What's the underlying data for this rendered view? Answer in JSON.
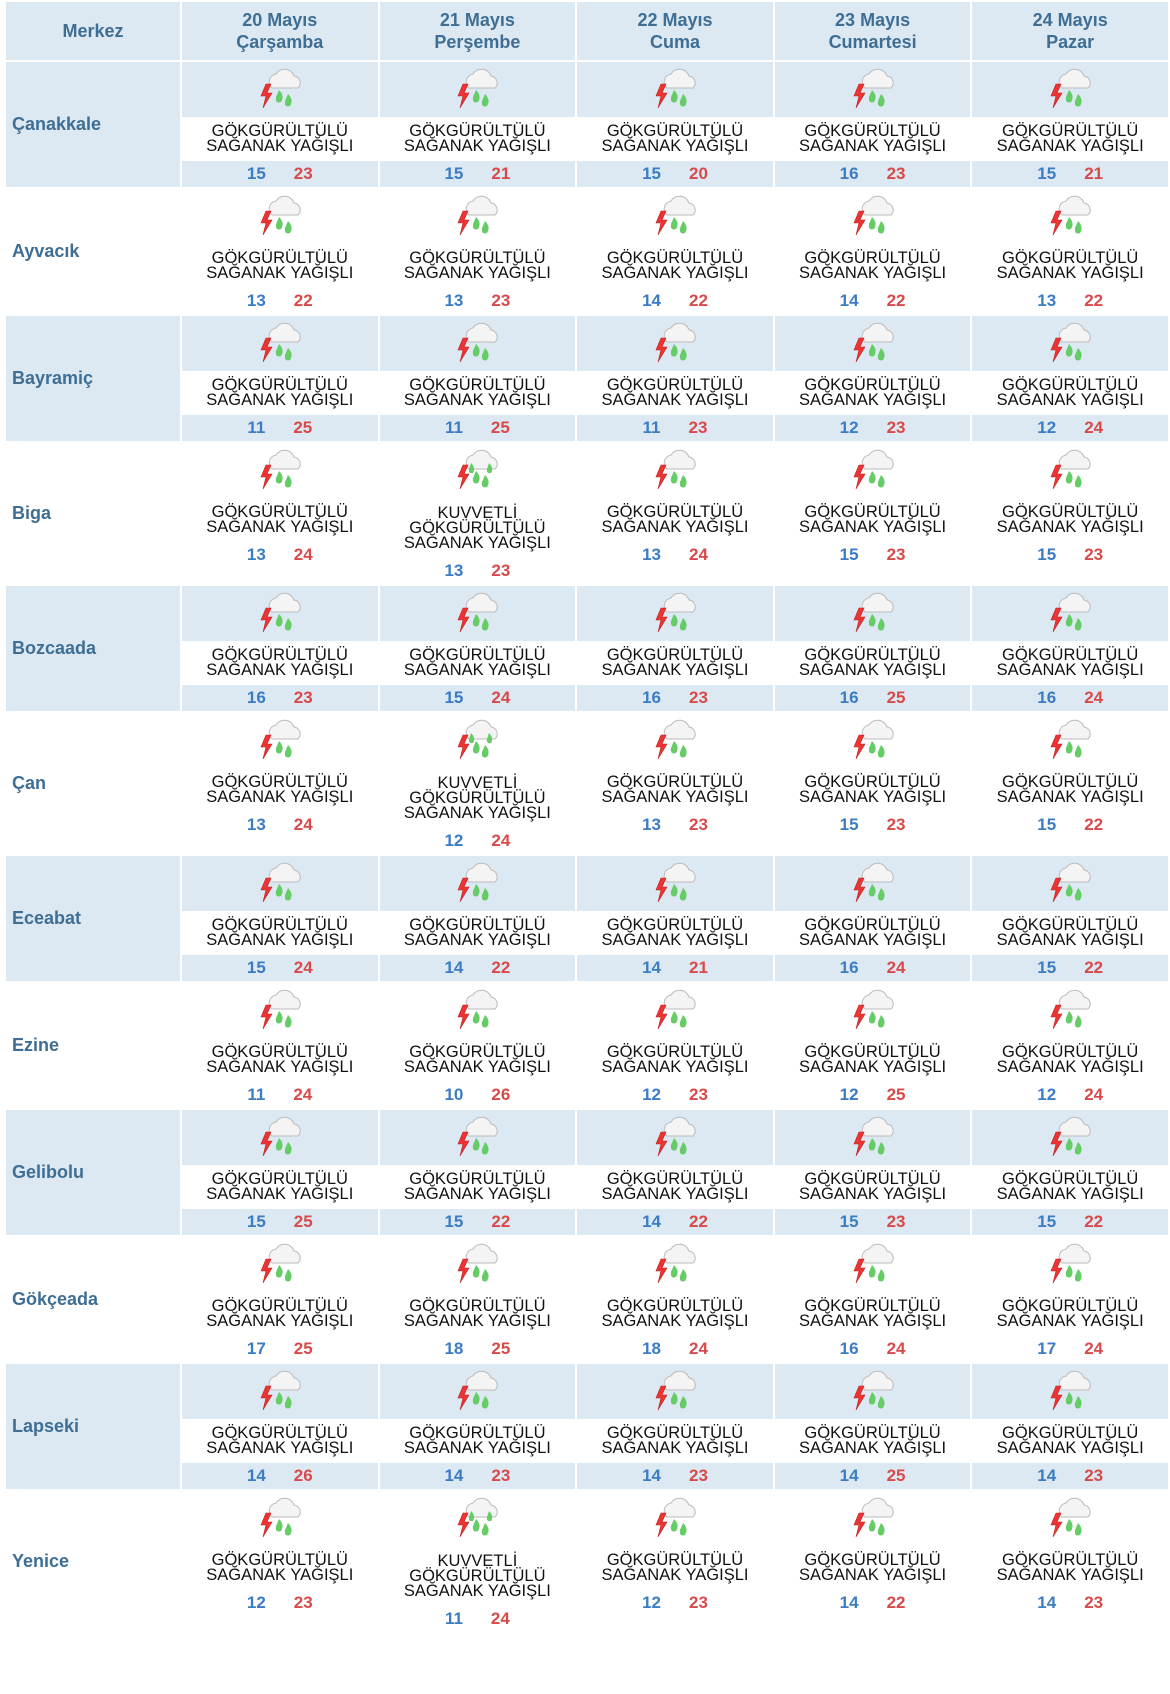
{
  "header": {
    "corner": "Merkez",
    "days": [
      {
        "date": "20 Mayıs",
        "weekday": "Çarşamba"
      },
      {
        "date": "21 Mayıs",
        "weekday": "Perşembe"
      },
      {
        "date": "22 Mayıs",
        "weekday": "Cuma"
      },
      {
        "date": "23 Mayıs",
        "weekday": "Cumartesi"
      },
      {
        "date": "24 Mayıs",
        "weekday": "Pazar"
      }
    ]
  },
  "rows": [
    {
      "city": "Çanakkale",
      "days": [
        {
          "condition": [
            "GÖKGÜRÜLTÜLÜ",
            "SAĞANAK YAĞIŞLI"
          ],
          "low": 15,
          "high": 23
        },
        {
          "condition": [
            "GÖKGÜRÜLTÜLÜ",
            "SAĞANAK YAĞIŞLI"
          ],
          "low": 15,
          "high": 21
        },
        {
          "condition": [
            "GÖKGÜRÜLTÜLÜ",
            "SAĞANAK YAĞIŞLI"
          ],
          "low": 15,
          "high": 20
        },
        {
          "condition": [
            "GÖKGÜRÜLTÜLÜ",
            "SAĞANAK YAĞIŞLI"
          ],
          "low": 16,
          "high": 23
        },
        {
          "condition": [
            "GÖKGÜRÜLTÜLÜ",
            "SAĞANAK YAĞIŞLI"
          ],
          "low": 15,
          "high": 21
        }
      ]
    },
    {
      "city": "Ayvacık",
      "days": [
        {
          "condition": [
            "GÖKGÜRÜLTÜLÜ",
            "SAĞANAK YAĞIŞLI"
          ],
          "low": 13,
          "high": 22
        },
        {
          "condition": [
            "GÖKGÜRÜLTÜLÜ",
            "SAĞANAK YAĞIŞLI"
          ],
          "low": 13,
          "high": 23
        },
        {
          "condition": [
            "GÖKGÜRÜLTÜLÜ",
            "SAĞANAK YAĞIŞLI"
          ],
          "low": 14,
          "high": 22
        },
        {
          "condition": [
            "GÖKGÜRÜLTÜLÜ",
            "SAĞANAK YAĞIŞLI"
          ],
          "low": 14,
          "high": 22
        },
        {
          "condition": [
            "GÖKGÜRÜLTÜLÜ",
            "SAĞANAK YAĞIŞLI"
          ],
          "low": 13,
          "high": 22
        }
      ]
    },
    {
      "city": "Bayramiç",
      "days": [
        {
          "condition": [
            "GÖKGÜRÜLTÜLÜ",
            "SAĞANAK YAĞIŞLI"
          ],
          "low": 11,
          "high": 25
        },
        {
          "condition": [
            "GÖKGÜRÜLTÜLÜ",
            "SAĞANAK YAĞIŞLI"
          ],
          "low": 11,
          "high": 25
        },
        {
          "condition": [
            "GÖKGÜRÜLTÜLÜ",
            "SAĞANAK YAĞIŞLI"
          ],
          "low": 11,
          "high": 23
        },
        {
          "condition": [
            "GÖKGÜRÜLTÜLÜ",
            "SAĞANAK YAĞIŞLI"
          ],
          "low": 12,
          "high": 23
        },
        {
          "condition": [
            "GÖKGÜRÜLTÜLÜ",
            "SAĞANAK YAĞIŞLI"
          ],
          "low": 12,
          "high": 24
        }
      ]
    },
    {
      "city": "Biga",
      "days": [
        {
          "condition": [
            "GÖKGÜRÜLTÜLÜ",
            "SAĞANAK YAĞIŞLI"
          ],
          "low": 13,
          "high": 24
        },
        {
          "condition": [
            "KUVVETLİ",
            "GÖKGÜRÜLTÜLÜ",
            "SAĞANAK YAĞIŞLI"
          ],
          "low": 13,
          "high": 23
        },
        {
          "condition": [
            "GÖKGÜRÜLTÜLÜ",
            "SAĞANAK YAĞIŞLI"
          ],
          "low": 13,
          "high": 24
        },
        {
          "condition": [
            "GÖKGÜRÜLTÜLÜ",
            "SAĞANAK YAĞIŞLI"
          ],
          "low": 15,
          "high": 23
        },
        {
          "condition": [
            "GÖKGÜRÜLTÜLÜ",
            "SAĞANAK YAĞIŞLI"
          ],
          "low": 15,
          "high": 23
        }
      ]
    },
    {
      "city": "Bozcaada",
      "days": [
        {
          "condition": [
            "GÖKGÜRÜLTÜLÜ",
            "SAĞANAK YAĞIŞLI"
          ],
          "low": 16,
          "high": 23
        },
        {
          "condition": [
            "GÖKGÜRÜLTÜLÜ",
            "SAĞANAK YAĞIŞLI"
          ],
          "low": 15,
          "high": 24
        },
        {
          "condition": [
            "GÖKGÜRÜLTÜLÜ",
            "SAĞANAK YAĞIŞLI"
          ],
          "low": 16,
          "high": 23
        },
        {
          "condition": [
            "GÖKGÜRÜLTÜLÜ",
            "SAĞANAK YAĞIŞLI"
          ],
          "low": 16,
          "high": 25
        },
        {
          "condition": [
            "GÖKGÜRÜLTÜLÜ",
            "SAĞANAK YAĞIŞLI"
          ],
          "low": 16,
          "high": 24
        }
      ]
    },
    {
      "city": "Çan",
      "days": [
        {
          "condition": [
            "GÖKGÜRÜLTÜLÜ",
            "SAĞANAK YAĞIŞLI"
          ],
          "low": 13,
          "high": 24
        },
        {
          "condition": [
            "KUVVETLİ",
            "GÖKGÜRÜLTÜLÜ",
            "SAĞANAK YAĞIŞLI"
          ],
          "low": 12,
          "high": 24
        },
        {
          "condition": [
            "GÖKGÜRÜLTÜLÜ",
            "SAĞANAK YAĞIŞLI"
          ],
          "low": 13,
          "high": 23
        },
        {
          "condition": [
            "GÖKGÜRÜLTÜLÜ",
            "SAĞANAK YAĞIŞLI"
          ],
          "low": 15,
          "high": 23
        },
        {
          "condition": [
            "GÖKGÜRÜLTÜLÜ",
            "SAĞANAK YAĞIŞLI"
          ],
          "low": 15,
          "high": 22
        }
      ]
    },
    {
      "city": "Eceabat",
      "days": [
        {
          "condition": [
            "GÖKGÜRÜLTÜLÜ",
            "SAĞANAK YAĞIŞLI"
          ],
          "low": 15,
          "high": 24
        },
        {
          "condition": [
            "GÖKGÜRÜLTÜLÜ",
            "SAĞANAK YAĞIŞLI"
          ],
          "low": 14,
          "high": 22
        },
        {
          "condition": [
            "GÖKGÜRÜLTÜLÜ",
            "SAĞANAK YAĞIŞLI"
          ],
          "low": 14,
          "high": 21
        },
        {
          "condition": [
            "GÖKGÜRÜLTÜLÜ",
            "SAĞANAK YAĞIŞLI"
          ],
          "low": 16,
          "high": 24
        },
        {
          "condition": [
            "GÖKGÜRÜLTÜLÜ",
            "SAĞANAK YAĞIŞLI"
          ],
          "low": 15,
          "high": 22
        }
      ]
    },
    {
      "city": "Ezine",
      "days": [
        {
          "condition": [
            "GÖKGÜRÜLTÜLÜ",
            "SAĞANAK YAĞIŞLI"
          ],
          "low": 11,
          "high": 24
        },
        {
          "condition": [
            "GÖKGÜRÜLTÜLÜ",
            "SAĞANAK YAĞIŞLI"
          ],
          "low": 10,
          "high": 26
        },
        {
          "condition": [
            "GÖKGÜRÜLTÜLÜ",
            "SAĞANAK YAĞIŞLI"
          ],
          "low": 12,
          "high": 23
        },
        {
          "condition": [
            "GÖKGÜRÜLTÜLÜ",
            "SAĞANAK YAĞIŞLI"
          ],
          "low": 12,
          "high": 25
        },
        {
          "condition": [
            "GÖKGÜRÜLTÜLÜ",
            "SAĞANAK YAĞIŞLI"
          ],
          "low": 12,
          "high": 24
        }
      ]
    },
    {
      "city": "Gelibolu",
      "days": [
        {
          "condition": [
            "GÖKGÜRÜLTÜLÜ",
            "SAĞANAK YAĞIŞLI"
          ],
          "low": 15,
          "high": 25
        },
        {
          "condition": [
            "GÖKGÜRÜLTÜLÜ",
            "SAĞANAK YAĞIŞLI"
          ],
          "low": 15,
          "high": 22
        },
        {
          "condition": [
            "GÖKGÜRÜLTÜLÜ",
            "SAĞANAK YAĞIŞLI"
          ],
          "low": 14,
          "high": 22
        },
        {
          "condition": [
            "GÖKGÜRÜLTÜLÜ",
            "SAĞANAK YAĞIŞLI"
          ],
          "low": 15,
          "high": 23
        },
        {
          "condition": [
            "GÖKGÜRÜLTÜLÜ",
            "SAĞANAK YAĞIŞLI"
          ],
          "low": 15,
          "high": 22
        }
      ]
    },
    {
      "city": "Gökçeada",
      "days": [
        {
          "condition": [
            "GÖKGÜRÜLTÜLÜ",
            "SAĞANAK YAĞIŞLI"
          ],
          "low": 17,
          "high": 25
        },
        {
          "condition": [
            "GÖKGÜRÜLTÜLÜ",
            "SAĞANAK YAĞIŞLI"
          ],
          "low": 18,
          "high": 25
        },
        {
          "condition": [
            "GÖKGÜRÜLTÜLÜ",
            "SAĞANAK YAĞIŞLI"
          ],
          "low": 18,
          "high": 24
        },
        {
          "condition": [
            "GÖKGÜRÜLTÜLÜ",
            "SAĞANAK YAĞIŞLI"
          ],
          "low": 16,
          "high": 24
        },
        {
          "condition": [
            "GÖKGÜRÜLTÜLÜ",
            "SAĞANAK YAĞIŞLI"
          ],
          "low": 17,
          "high": 24
        }
      ]
    },
    {
      "city": "Lapseki",
      "days": [
        {
          "condition": [
            "GÖKGÜRÜLTÜLÜ",
            "SAĞANAK YAĞIŞLI"
          ],
          "low": 14,
          "high": 26
        },
        {
          "condition": [
            "GÖKGÜRÜLTÜLÜ",
            "SAĞANAK YAĞIŞLI"
          ],
          "low": 14,
          "high": 23
        },
        {
          "condition": [
            "GÖKGÜRÜLTÜLÜ",
            "SAĞANAK YAĞIŞLI"
          ],
          "low": 14,
          "high": 23
        },
        {
          "condition": [
            "GÖKGÜRÜLTÜLÜ",
            "SAĞANAK YAĞIŞLI"
          ],
          "low": 14,
          "high": 25
        },
        {
          "condition": [
            "GÖKGÜRÜLTÜLÜ",
            "SAĞANAK YAĞIŞLI"
          ],
          "low": 14,
          "high": 23
        }
      ]
    },
    {
      "city": "Yenice",
      "days": [
        {
          "condition": [
            "GÖKGÜRÜLTÜLÜ",
            "SAĞANAK YAĞIŞLI"
          ],
          "low": 12,
          "high": 23
        },
        {
          "condition": [
            "KUVVETLİ",
            "GÖKGÜRÜLTÜLÜ",
            "SAĞANAK YAĞIŞLI"
          ],
          "low": 11,
          "high": 24
        },
        {
          "condition": [
            "GÖKGÜRÜLTÜLÜ",
            "SAĞANAK YAĞIŞLI"
          ],
          "low": 12,
          "high": 23
        },
        {
          "condition": [
            "GÖKGÜRÜLTÜLÜ",
            "SAĞANAK YAĞIŞLI"
          ],
          "low": 14,
          "high": 22
        },
        {
          "condition": [
            "GÖKGÜRÜLTÜLÜ",
            "SAĞANAK YAĞIŞLI"
          ],
          "low": 14,
          "high": 23
        }
      ]
    }
  ]
}
